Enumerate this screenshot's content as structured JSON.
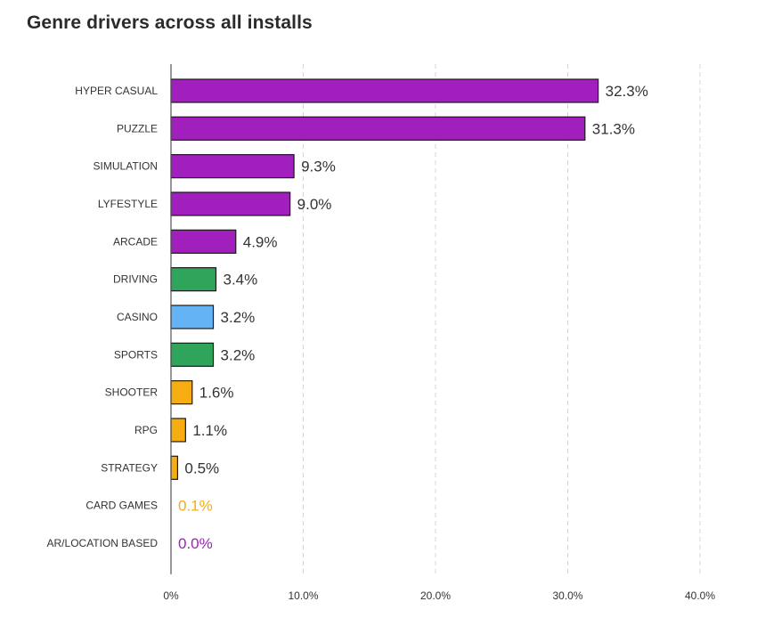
{
  "chart_data": {
    "type": "bar",
    "orientation": "horizontal",
    "title": "Genre drivers across all installs",
    "xlabel": "",
    "ylabel": "",
    "xlim": [
      0,
      40
    ],
    "x_ticks": [
      "0%",
      "10.0%",
      "20.0%",
      "30.0%",
      "40.0%"
    ],
    "grid": "vertical dashed",
    "categories": [
      "HYPER CASUAL",
      "PUZZLE",
      "SIMULATION",
      "LYFESTYLE",
      "ARCADE",
      "DRIVING",
      "CASINO",
      "SPORTS",
      "SHOOTER",
      "RPG",
      "STRATEGY",
      "CARD GAMES",
      "AR/LOCATION BASED"
    ],
    "values": [
      32.3,
      31.3,
      9.3,
      9.0,
      4.9,
      3.4,
      3.2,
      3.2,
      1.6,
      1.1,
      0.5,
      0.1,
      0.0
    ],
    "value_labels": [
      "32.3%",
      "31.3%",
      "9.3%",
      "9.0%",
      "4.9%",
      "3.4%",
      "3.2%",
      "3.2%",
      "1.6%",
      "1.1%",
      "0.5%",
      "0.1%",
      "0.0%"
    ],
    "bar_colors": [
      "#a11fbd",
      "#a11fbd",
      "#a11fbd",
      "#a11fbd",
      "#a11fbd",
      "#2ea55a",
      "#63b3f5",
      "#2ea55a",
      "#f5ad12",
      "#f5ad12",
      "#f5ad12",
      "#f5ad12",
      "#a11fbd"
    ],
    "label_colors": [
      "#333333",
      "#333333",
      "#333333",
      "#333333",
      "#333333",
      "#333333",
      "#333333",
      "#333333",
      "#333333",
      "#333333",
      "#333333",
      "#f5ad12",
      "#a11fbd"
    ]
  }
}
